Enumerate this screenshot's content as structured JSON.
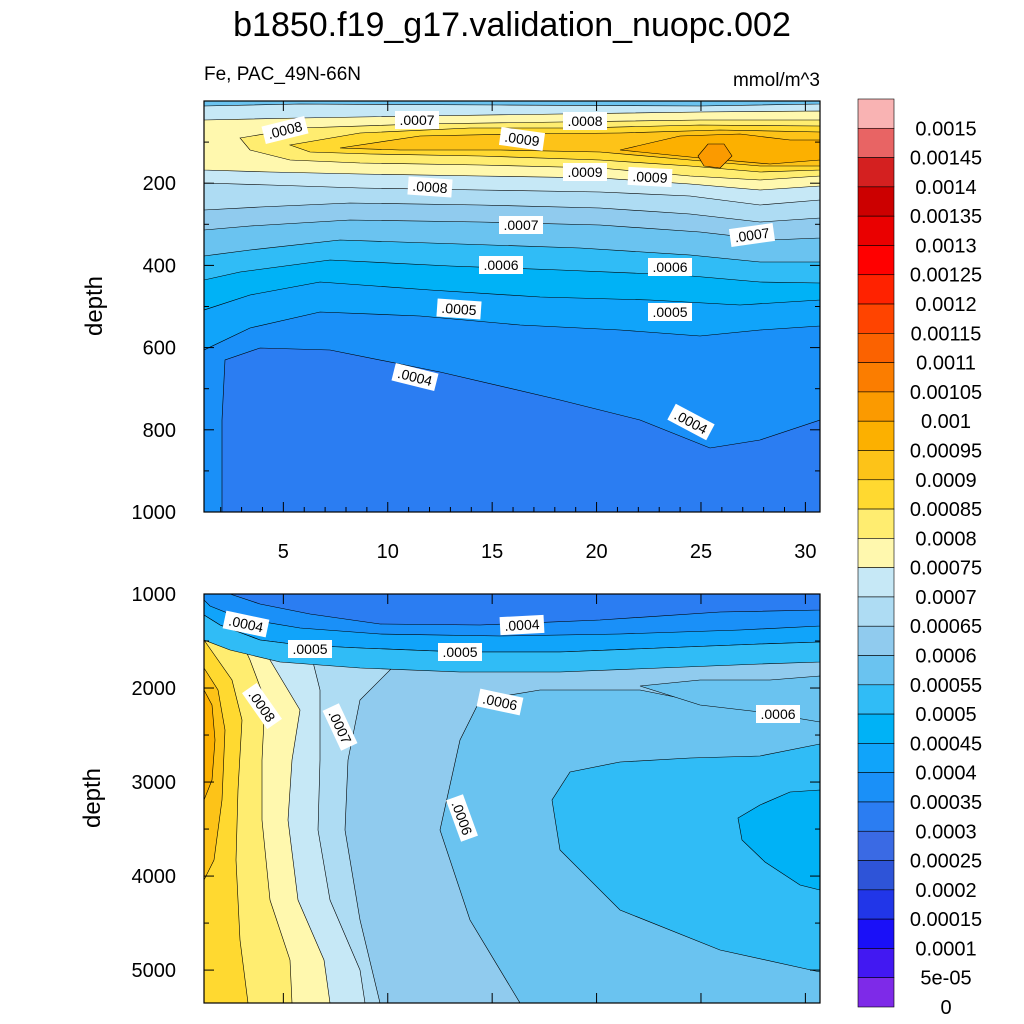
{
  "chart_data": {
    "type": "contour",
    "title": "b1850.f19_g17.validation_nuopc.002",
    "variable_label": "Fe, PAC_49N-66N",
    "units_label": "mmol/m^3",
    "colorbar": {
      "levels": [
        "0.0015",
        "0.00145",
        "0.0014",
        "0.00135",
        "0.0013",
        "0.00125",
        "0.0012",
        "0.00115",
        "0.0011",
        "0.00105",
        "0.001",
        "0.00095",
        "0.0009",
        "0.00085",
        "0.0008",
        "0.00075",
        "0.0007",
        "0.00065",
        "0.0006",
        "0.00055",
        "0.0005",
        "0.00045",
        "0.0004",
        "0.00035",
        "0.0003",
        "0.00025",
        "0.0002",
        "0.00015",
        "0.0001",
        "5e-05",
        "0"
      ],
      "colors": [
        "#f9b3b3",
        "#e86464",
        "#d42020",
        "#cc0000",
        "#ea0000",
        "#ff0000",
        "#ff2200",
        "#ff4400",
        "#fb6200",
        "#fb7d00",
        "#fb9a00",
        "#fcb000",
        "#fdc318",
        "#ffd930",
        "#ffed70",
        "#fff8ae",
        "#c6e8f6",
        "#aedcf3",
        "#90cbee",
        "#6ac3f0",
        "#30bcf6",
        "#00b2f6",
        "#10a4fa",
        "#1a90f8",
        "#2b7df2",
        "#3a6ae4",
        "#2e54d8",
        "#2136e8",
        "#1a10f8",
        "#4218f2",
        "#7e2ae8"
      ]
    },
    "panels": [
      {
        "name": "upper",
        "ylabel": "depth",
        "ylim": [
          0,
          1000
        ],
        "yticks": [
          "200",
          "400",
          "600",
          "800",
          "1000"
        ],
        "xlim": [
          1.2,
          30.7
        ],
        "xticks": [
          "5",
          "10",
          "15",
          "20",
          "25",
          "30"
        ],
        "contour_labels": [
          ".0008",
          ".0007",
          ".0009",
          ".0008",
          ".0009",
          ".0009",
          ".0008",
          ".0007",
          ".0007",
          ".0006",
          ".0006",
          ".0005",
          ".0005",
          ".0004",
          ".0004"
        ]
      },
      {
        "name": "lower",
        "ylabel": "depth",
        "ylim": [
          1000,
          5350
        ],
        "yticks": [
          "1000",
          "2000",
          "3000",
          "4000",
          "5000"
        ],
        "contour_labels": [
          ".0004",
          ".0004",
          ".0005",
          ".0005",
          ".0006",
          ".0006",
          ".0008",
          ".0007",
          ".0006"
        ]
      }
    ]
  }
}
